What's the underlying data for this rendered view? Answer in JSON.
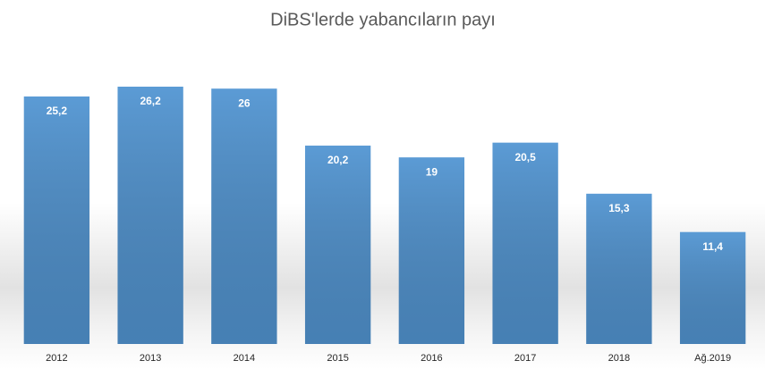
{
  "chart_data": {
    "type": "bar",
    "title": "DiBS'lerde yabancıların payı",
    "categories": [
      "2012",
      "2013",
      "2014",
      "2015",
      "2016",
      "2017",
      "2018",
      "Ağ.2019"
    ],
    "values": [
      25.2,
      26.2,
      26,
      20.2,
      19,
      20.5,
      15.3,
      11.4
    ],
    "value_labels": [
      "25,2",
      "26,2",
      "26",
      "20,2",
      "19",
      "20,5",
      "15,3",
      "11,4"
    ],
    "color": "#5b9bd5"
  }
}
